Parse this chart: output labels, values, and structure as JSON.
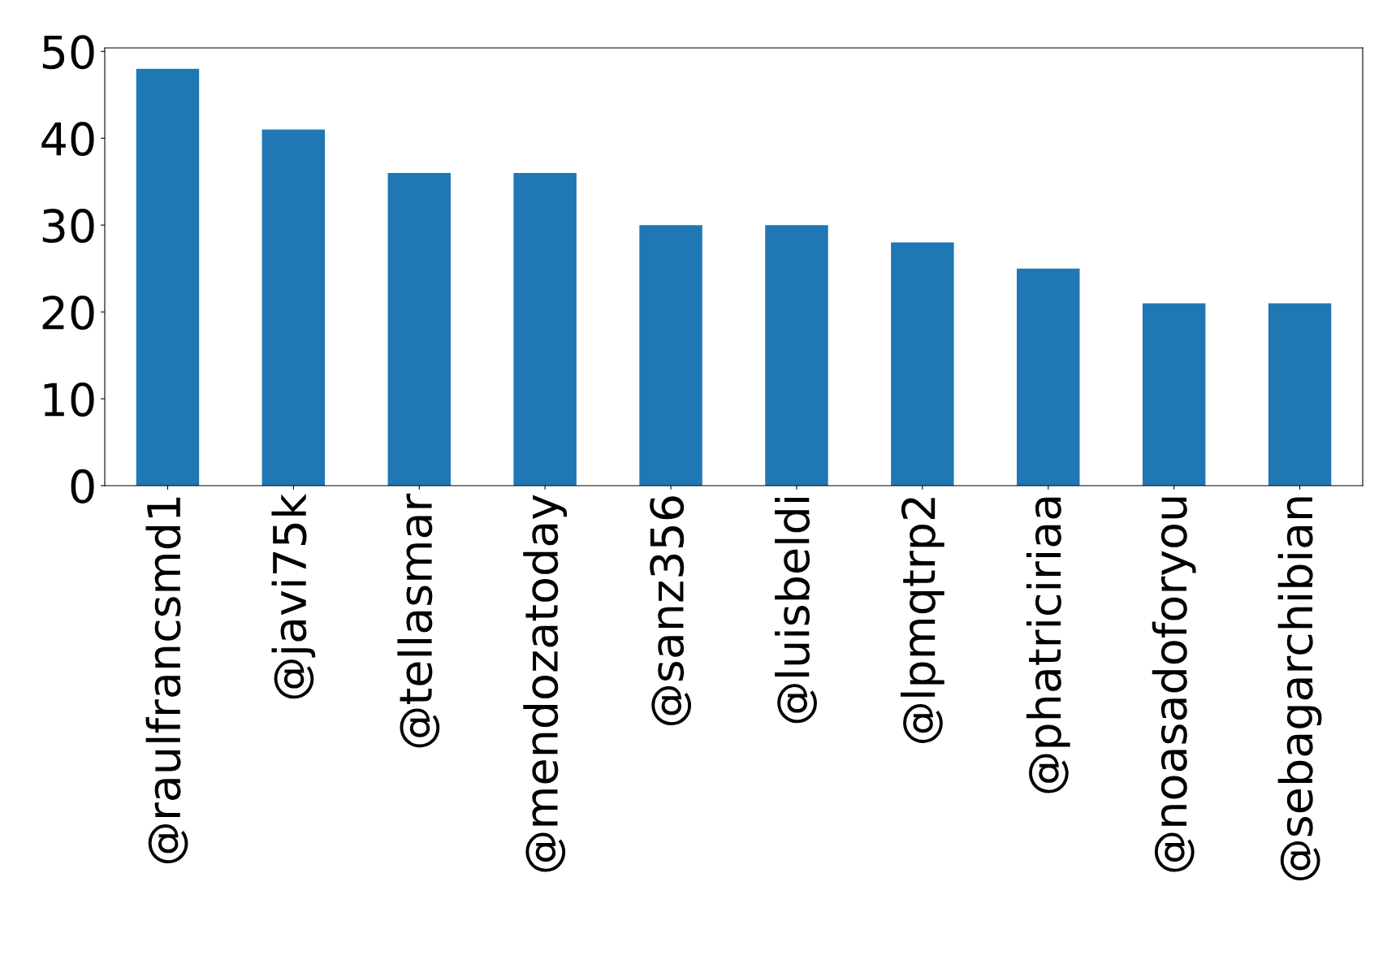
{
  "chart_data": {
    "type": "bar",
    "categories": [
      "@raulfrancsmd1",
      "@javi75k",
      "@tellasmar",
      "@mendozatoday",
      "@sanz356",
      "@luisbeldi",
      "@lpmqtrp2",
      "@phatriciriaa",
      "@noasadoforyou",
      "@sebagarchibian"
    ],
    "values": [
      48,
      41,
      36,
      36,
      30,
      30,
      28,
      25,
      21,
      21
    ],
    "color": "#1f77b4",
    "ylim": [
      0,
      50.4
    ],
    "yticks": [
      0,
      10,
      20,
      30,
      40,
      50
    ],
    "grid": false,
    "legend": false
  }
}
